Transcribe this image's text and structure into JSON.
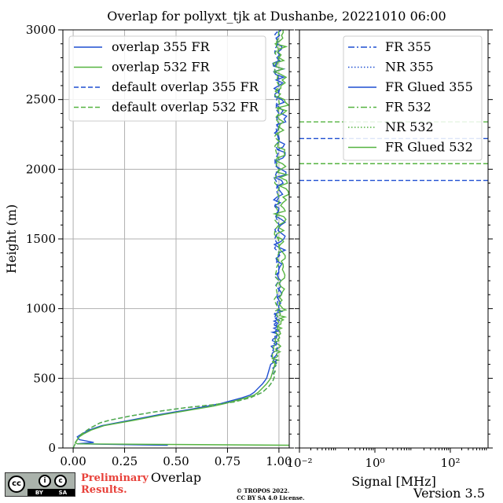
{
  "title": "Overlap for pollyxt_tjk at Dushanbe, 20221010 06:00",
  "footer": {
    "prelim_line1": "Preliminary",
    "prelim_line2": "Results.",
    "copyright_line1": "© TROPOS 2022.",
    "copyright_line2": "CC BY SA 4.0 License.",
    "version": "Version 3.5",
    "cc_logo_text": "cc",
    "cc_by": "BY",
    "cc_sa": "SA"
  },
  "colors": {
    "blue": "#1f4fd1",
    "green": "#55b340",
    "grid": "#b0b0b0"
  },
  "chart_data": [
    {
      "type": "line",
      "xlabel": "Overlap",
      "ylabel": "Height (m)",
      "xlim": [
        -0.05,
        1.05
      ],
      "ylim": [
        0,
        3000
      ],
      "xticks": [
        0.0,
        0.25,
        0.5,
        0.75,
        1.0
      ],
      "xtick_labels": [
        "0.00",
        "0.25",
        "0.50",
        "0.75",
        "1.00"
      ],
      "yticks": [
        0,
        500,
        1000,
        1500,
        2000,
        2500,
        3000
      ],
      "grid": true,
      "legend_position": "top-right",
      "series": [
        {
          "name": "overlap 355 FR",
          "color": "#1f4fd1",
          "dash": "solid",
          "height": [
            20,
            30,
            40,
            60,
            80,
            100,
            130,
            160,
            200,
            240,
            280,
            300,
            320,
            340,
            360,
            380,
            400,
            430,
            460,
            480,
            500,
            550,
            600,
            700,
            800,
            900,
            1000,
            1200,
            1400,
            1600,
            1800,
            2000,
            2200,
            2400,
            2600,
            2800,
            3000
          ],
          "overlap": [
            0.46,
            0.02,
            0.1,
            0.03,
            0.02,
            0.04,
            0.08,
            0.14,
            0.28,
            0.42,
            0.58,
            0.65,
            0.72,
            0.77,
            0.82,
            0.86,
            0.88,
            0.9,
            0.92,
            0.93,
            0.94,
            0.95,
            0.96,
            0.97,
            0.98,
            0.99,
            1.0,
            1.01,
            1.0,
            1.01,
            0.99,
            1.01,
            1.0,
            1.01,
            1.0,
            0.99,
            1.01
          ]
        },
        {
          "name": "overlap 532 FR",
          "color": "#55b340",
          "dash": "solid",
          "height": [
            20,
            30,
            40,
            60,
            80,
            100,
            130,
            160,
            200,
            240,
            280,
            300,
            320,
            340,
            360,
            380,
            400,
            430,
            460,
            480,
            500,
            550,
            600,
            700,
            800,
            900,
            1000,
            1200,
            1400,
            1600,
            1800,
            2000,
            2200,
            2400,
            2600,
            2800,
            3000
          ],
          "overlap": [
            1.05,
            0.02,
            0.01,
            0.02,
            0.03,
            0.05,
            0.09,
            0.15,
            0.3,
            0.44,
            0.6,
            0.68,
            0.74,
            0.79,
            0.84,
            0.88,
            0.9,
            0.92,
            0.94,
            0.95,
            0.96,
            0.97,
            0.98,
            0.99,
            1.0,
            1.01,
            1.02,
            1.01,
            1.02,
            1.0,
            1.02,
            1.01,
            1.0,
            1.02,
            1.01,
            1.0,
            1.02
          ]
        },
        {
          "name": "default overlap 355 FR",
          "color": "#1f4fd1",
          "dash": "dashed",
          "height": [
            0,
            60,
            100,
            140,
            180,
            200,
            230,
            260,
            290,
            310,
            330,
            360,
            400,
            440,
            480,
            520,
            600,
            700,
            800,
            900,
            1000,
            1200,
            1400,
            1600,
            1800,
            2000,
            2200,
            2400,
            2600,
            2800,
            3000
          ],
          "overlap": [
            0.0,
            0.02,
            0.04,
            0.08,
            0.13,
            0.18,
            0.28,
            0.4,
            0.55,
            0.68,
            0.78,
            0.86,
            0.92,
            0.95,
            0.97,
            0.98,
            0.99,
            0.99,
            0.99,
            1.0,
            1.0,
            1.0,
            1.0,
            1.0,
            1.0,
            1.0,
            1.0,
            1.0,
            1.0,
            1.0,
            1.0
          ]
        },
        {
          "name": "default overlap 532 FR",
          "color": "#55b340",
          "dash": "dashed",
          "height": [
            0,
            60,
            100,
            140,
            180,
            200,
            230,
            260,
            290,
            310,
            330,
            360,
            400,
            440,
            480,
            520,
            600,
            700,
            800,
            900,
            1000,
            1200,
            1400,
            1600,
            1800,
            2000,
            2200,
            2400,
            2600,
            2800,
            3000
          ],
          "overlap": [
            0.0,
            0.02,
            0.04,
            0.08,
            0.13,
            0.18,
            0.28,
            0.4,
            0.55,
            0.68,
            0.78,
            0.86,
            0.92,
            0.95,
            0.97,
            0.98,
            0.99,
            0.99,
            0.99,
            1.0,
            1.0,
            1.0,
            1.0,
            1.0,
            1.0,
            1.0,
            1.0,
            1.0,
            1.0,
            1.0,
            1.0
          ]
        }
      ]
    },
    {
      "type": "line",
      "xlabel": "Signal [MHz]",
      "x_scale": "log",
      "xlim": [
        0.01,
        1000
      ],
      "ylim": [
        0,
        3000
      ],
      "xtick_values": [
        0.01,
        1,
        100
      ],
      "xtick_labels": [
        "10⁻²",
        "10⁰",
        "10²"
      ],
      "grid": false,
      "legend_position": "top-right",
      "series": [
        {
          "name": "FR 355",
          "color": "#1f4fd1",
          "dash": "dashdot",
          "height_const": 2220
        },
        {
          "name": "NR 355",
          "color": "#1f4fd1",
          "dash": "dotted",
          "height_const": 1920
        },
        {
          "name": "FR Glued 355",
          "color": "#1f4fd1",
          "dash": "solid"
        },
        {
          "name": "FR 532",
          "color": "#55b340",
          "dash": "dashdot",
          "height_const": 2340
        },
        {
          "name": "NR 532",
          "color": "#55b340",
          "dash": "dotted",
          "height_const": 2040
        },
        {
          "name": "FR Glued 532",
          "color": "#55b340",
          "dash": "solid"
        }
      ]
    }
  ]
}
